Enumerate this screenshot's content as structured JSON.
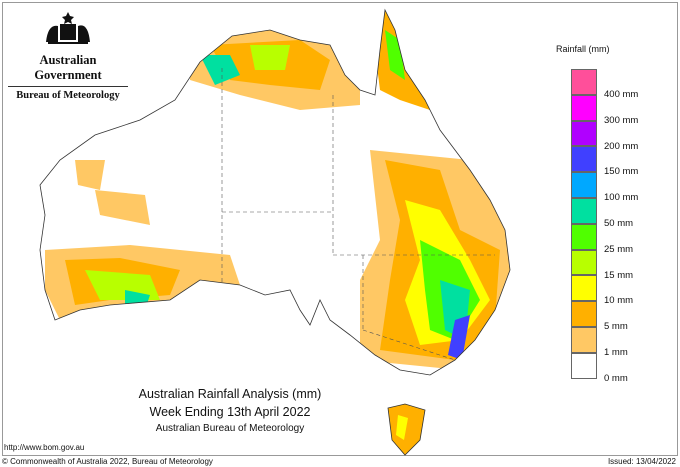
{
  "logo": {
    "government": "Australian Government",
    "bureau": "Bureau of Meteorology"
  },
  "legend": {
    "title": "Rainfall (mm)",
    "colors": [
      "#ff4f9a",
      "#ff00ff",
      "#b000ff",
      "#4040ff",
      "#00a8ff",
      "#00e0a0",
      "#50ff00",
      "#b8ff00",
      "#ffff00",
      "#ffb000",
      "#ffc864",
      "#ffffff"
    ],
    "labels": [
      "400 mm",
      "300 mm",
      "200 mm",
      "150 mm",
      "100 mm",
      "50 mm",
      "25 mm",
      "15 mm",
      "10 mm",
      "5 mm",
      "1 mm",
      "0 mm"
    ]
  },
  "title": {
    "line1": "Australian Rainfall Analysis (mm)",
    "line2": "Week Ending 13th April 2022",
    "line3": "Australian Bureau of Meteorology"
  },
  "footer": {
    "url": "http://www.bom.gov.au",
    "copyright": "© Commonwealth of Australia 2022, Bureau of Meteorology",
    "issued": "Issued: 13/04/2022"
  }
}
